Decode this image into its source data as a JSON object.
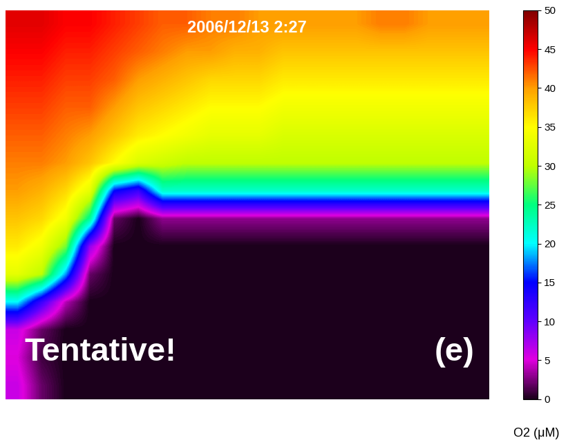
{
  "chart_data": {
    "type": "heatmap",
    "annotations": [
      "2006/12/13 2:27",
      "Tentative!",
      "(e)"
    ],
    "tick_labels": false,
    "cells": [
      [
        46,
        46,
        45,
        45,
        44,
        43,
        42,
        42,
        41,
        41,
        40,
        40,
        40,
        40,
        40,
        41,
        41,
        40,
        40,
        40
      ],
      [
        45,
        45,
        44,
        44,
        43,
        42,
        41,
        40,
        40,
        39,
        39,
        38,
        38,
        38,
        38,
        38,
        38,
        38,
        38,
        38
      ],
      [
        44,
        44,
        43,
        43,
        42,
        40,
        39,
        38,
        37,
        37,
        37,
        36,
        36,
        36,
        36,
        36,
        36,
        36,
        36,
        36
      ],
      [
        43,
        43,
        42,
        42,
        40,
        38,
        37,
        36,
        35,
        35,
        35,
        34,
        34,
        34,
        34,
        34,
        34,
        34,
        34,
        34
      ],
      [
        42,
        42,
        41,
        40,
        38,
        36,
        35,
        34,
        33,
        33,
        33,
        32,
        32,
        32,
        32,
        32,
        32,
        32,
        32,
        32
      ],
      [
        41,
        41,
        40,
        38,
        35,
        32,
        31,
        30,
        30,
        30,
        30,
        30,
        30,
        30,
        30,
        30,
        30,
        30,
        30,
        30
      ],
      [
        40,
        39,
        37,
        33,
        15,
        12,
        22,
        22,
        22,
        22,
        22,
        22,
        22,
        22,
        22,
        22,
        22,
        22,
        22,
        22
      ],
      [
        38,
        37,
        34,
        24,
        2,
        0,
        3,
        3,
        3,
        3,
        3,
        3,
        3,
        3,
        3,
        3,
        3,
        3,
        3,
        3
      ],
      [
        36,
        34,
        28,
        8,
        0,
        0,
        0,
        0,
        0,
        0,
        0,
        0,
        0,
        0,
        0,
        0,
        0,
        0,
        0,
        0
      ],
      [
        33,
        30,
        18,
        2,
        0,
        0,
        0,
        0,
        0,
        0,
        0,
        0,
        0,
        0,
        0,
        0,
        0,
        0,
        0,
        0
      ],
      [
        20,
        12,
        4,
        0,
        0,
        0,
        0,
        0,
        0,
        0,
        0,
        0,
        0,
        0,
        0,
        0,
        0,
        0,
        0,
        0
      ],
      [
        6,
        2,
        0,
        0,
        0,
        0,
        0,
        0,
        0,
        0,
        0,
        0,
        0,
        0,
        0,
        0,
        0,
        0,
        0,
        0
      ],
      [
        5,
        1,
        0,
        0,
        0,
        0,
        0,
        0,
        0,
        0,
        0,
        0,
        0,
        0,
        0,
        0,
        0,
        0,
        0,
        0
      ],
      [
        6,
        2,
        0,
        0,
        0,
        0,
        0,
        0,
        0,
        0,
        0,
        0,
        0,
        0,
        0,
        0,
        0,
        0,
        0,
        0
      ]
    ],
    "colorbar": {
      "range": [
        0,
        50
      ],
      "ticks": [
        0,
        5,
        10,
        15,
        20,
        25,
        30,
        35,
        40,
        45,
        50
      ],
      "label": "O2 (μM)"
    }
  }
}
